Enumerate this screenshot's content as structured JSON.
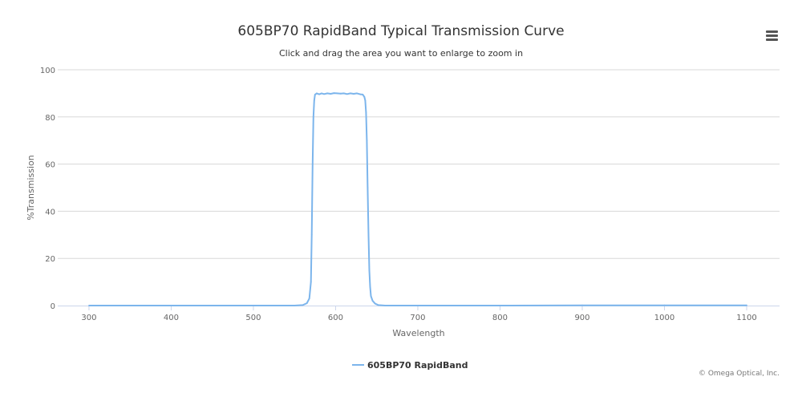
{
  "chart": {
    "title": "605BP70 RapidBand Typical Transmission Curve",
    "subtitle": "Click and drag the area you want to enlarge to zoom in",
    "menu_icon": "hamburger-menu-icon",
    "credit": "© Omega Optical, Inc."
  },
  "chart_data": {
    "type": "line",
    "title": "605BP70 RapidBand Typical Transmission Curve",
    "subtitle": "Click and drag the area you want to enlarge to zoom in",
    "xlabel": "Wavelength",
    "ylabel": "%Transmission",
    "xlim": [
      262,
      1140
    ],
    "ylim": [
      0,
      100
    ],
    "x_ticks": [
      300,
      400,
      500,
      600,
      700,
      800,
      900,
      1000,
      1100
    ],
    "y_ticks": [
      0,
      20,
      40,
      60,
      80,
      100
    ],
    "grid": true,
    "legend_position": "bottom-center",
    "series": [
      {
        "name": "605BP70 RapidBand",
        "color": "#7cb5ec",
        "x": [
          300,
          400,
          500,
          550,
          560,
          565,
          568,
          570,
          571,
          572,
          573,
          574,
          575,
          577,
          580,
          583,
          586,
          590,
          594,
          598,
          602,
          606,
          610,
          614,
          618,
          622,
          626,
          630,
          633,
          635,
          636,
          637,
          638,
          639,
          640,
          641,
          642,
          643,
          645,
          648,
          652,
          660,
          700,
          800,
          900,
          1000,
          1100
        ],
        "y": [
          0,
          0,
          0,
          0,
          0.2,
          1,
          3,
          10,
          30,
          60,
          80,
          87,
          89.5,
          90,
          89.6,
          90,
          89.7,
          90,
          89.8,
          90.1,
          90,
          89.9,
          90,
          89.7,
          90,
          89.8,
          90,
          89.6,
          89.5,
          88.5,
          87,
          82,
          70,
          50,
          30,
          15,
          8,
          4,
          2,
          0.8,
          0.2,
          0,
          0,
          0,
          0.1,
          0.1,
          0.1
        ]
      }
    ]
  }
}
